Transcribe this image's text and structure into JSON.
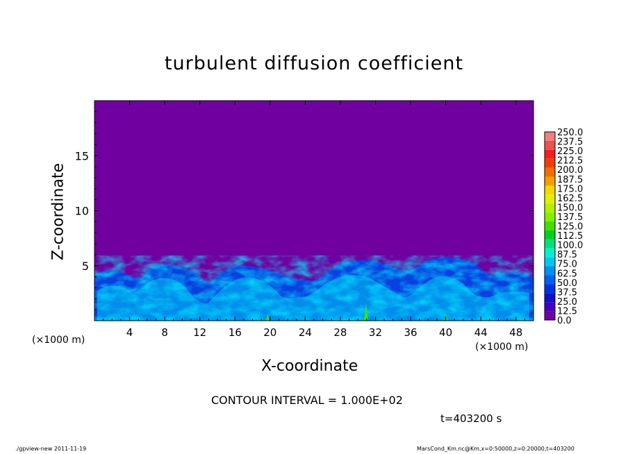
{
  "chart_data": {
    "type": "heatmap",
    "title": "turbulent diffusion coefficient",
    "xlabel": "X-coordinate",
    "ylabel": "Z-coordinate",
    "x_unit": "(×1000 m)",
    "x_unit_left": "(×1000 m)",
    "xlim": [
      0,
      50
    ],
    "ylim": [
      0,
      20
    ],
    "x_ticks": [
      4,
      8,
      12,
      16,
      20,
      24,
      28,
      32,
      36,
      40,
      44,
      48
    ],
    "y_ticks": [
      5,
      10,
      15
    ],
    "colorbar_levels": [
      "250.0",
      "237.5",
      "225.0",
      "212.5",
      "200.0",
      "187.5",
      "175.0",
      "162.5",
      "150.0",
      "137.5",
      "125.0",
      "112.5",
      "100.0",
      "87.5",
      "75.0",
      "62.5",
      "50.0",
      "37.5",
      "25.0",
      "12.5",
      "0.0"
    ],
    "colorbar_colors": [
      "#f08080",
      "#f05050",
      "#f02020",
      "#f04000",
      "#f07000",
      "#f0a000",
      "#f0d800",
      "#e0f000",
      "#b0f000",
      "#80f000",
      "#40e000",
      "#00d020",
      "#00e080",
      "#00f0d0",
      "#00c8f0",
      "#0090f0",
      "#0060f0",
      "#0030e0",
      "#1010c8",
      "#4000c0",
      "#7000a0"
    ],
    "background_color": "#7000a0",
    "contour_interval": "CONTOUR INTERVAL = 1.000E+02",
    "time": "t=403200 s"
  },
  "footer": {
    "left": "./gpview-new  2011-11-19",
    "right": "MarsCond_Km.nc@Km,x=0:50000,z=0:20000,t=403200"
  }
}
